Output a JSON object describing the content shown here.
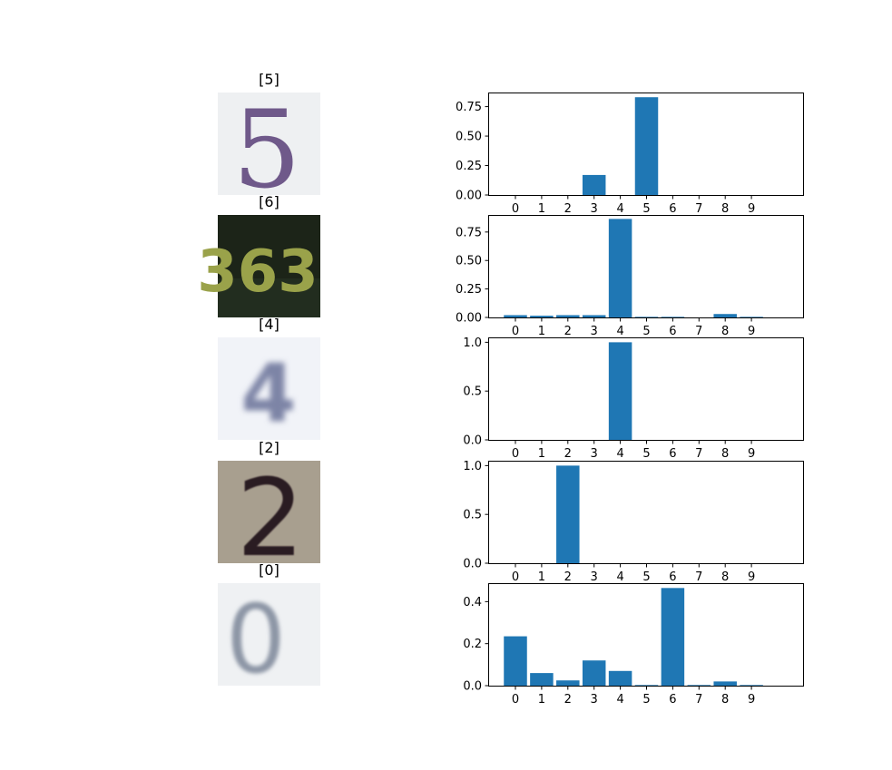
{
  "figure": {
    "bar_color": "#1f77b4",
    "panels": [
      {
        "label": "[5]",
        "digit_text": "5",
        "style": "svhn-light-purple"
      },
      {
        "label": "[6]",
        "digit_text": "363",
        "style": "svhn-dark-yellow"
      },
      {
        "label": "[4]",
        "digit_text": "4",
        "style": "svhn-blurry-blue"
      },
      {
        "label": "[2]",
        "digit_text": "2",
        "style": "svhn-tan-dark"
      },
      {
        "label": "[0]",
        "digit_text": "0",
        "style": "svhn-light-gray"
      }
    ]
  },
  "chart_data": [
    {
      "type": "bar",
      "categories": [
        "0",
        "1",
        "2",
        "3",
        "4",
        "5",
        "6",
        "7",
        "8",
        "9"
      ],
      "values": [
        0.0,
        0.0,
        0.0,
        0.17,
        0.0,
        0.83,
        0.0,
        0.0,
        0.0,
        0.0
      ],
      "ylim": [
        0,
        0.87
      ],
      "yticks": [
        0.0,
        0.25,
        0.5,
        0.75
      ],
      "ytick_labels": [
        "0.00",
        "0.25",
        "0.50",
        "0.75"
      ],
      "title": "",
      "xlabel": "",
      "ylabel": ""
    },
    {
      "type": "bar",
      "categories": [
        "0",
        "1",
        "2",
        "3",
        "4",
        "5",
        "6",
        "7",
        "8",
        "9"
      ],
      "values": [
        0.02,
        0.015,
        0.02,
        0.02,
        0.865,
        0.005,
        0.005,
        0.0,
        0.03,
        0.005
      ],
      "ylim": [
        0,
        0.9
      ],
      "yticks": [
        0.0,
        0.25,
        0.5,
        0.75
      ],
      "ytick_labels": [
        "0.00",
        "0.25",
        "0.50",
        "0.75"
      ],
      "title": "",
      "xlabel": "",
      "ylabel": ""
    },
    {
      "type": "bar",
      "categories": [
        "0",
        "1",
        "2",
        "3",
        "4",
        "5",
        "6",
        "7",
        "8",
        "9"
      ],
      "values": [
        0.0,
        0.0,
        0.0,
        0.0,
        1.0,
        0.0,
        0.0,
        0.0,
        0.0,
        0.0
      ],
      "ylim": [
        0,
        1.05
      ],
      "yticks": [
        0.0,
        0.5,
        1.0
      ],
      "ytick_labels": [
        "0.0",
        "0.5",
        "1.0"
      ],
      "title": "",
      "xlabel": "",
      "ylabel": ""
    },
    {
      "type": "bar",
      "categories": [
        "0",
        "1",
        "2",
        "3",
        "4",
        "5",
        "6",
        "7",
        "8",
        "9"
      ],
      "values": [
        0.0,
        0.0,
        1.0,
        0.0,
        0.0,
        0.0,
        0.0,
        0.0,
        0.0,
        0.0
      ],
      "ylim": [
        0,
        1.05
      ],
      "yticks": [
        0.0,
        0.5,
        1.0
      ],
      "ytick_labels": [
        "0.0",
        "0.5",
        "1.0"
      ],
      "title": "",
      "xlabel": "",
      "ylabel": ""
    },
    {
      "type": "bar",
      "categories": [
        "0",
        "1",
        "2",
        "3",
        "4",
        "5",
        "6",
        "7",
        "8",
        "9"
      ],
      "values": [
        0.235,
        0.06,
        0.025,
        0.12,
        0.07,
        0.003,
        0.465,
        0.003,
        0.02,
        0.003
      ],
      "ylim": [
        0,
        0.488
      ],
      "yticks": [
        0.0,
        0.2,
        0.4
      ],
      "ytick_labels": [
        "0.0",
        "0.2",
        "0.4"
      ],
      "title": "",
      "xlabel": "",
      "ylabel": ""
    }
  ]
}
